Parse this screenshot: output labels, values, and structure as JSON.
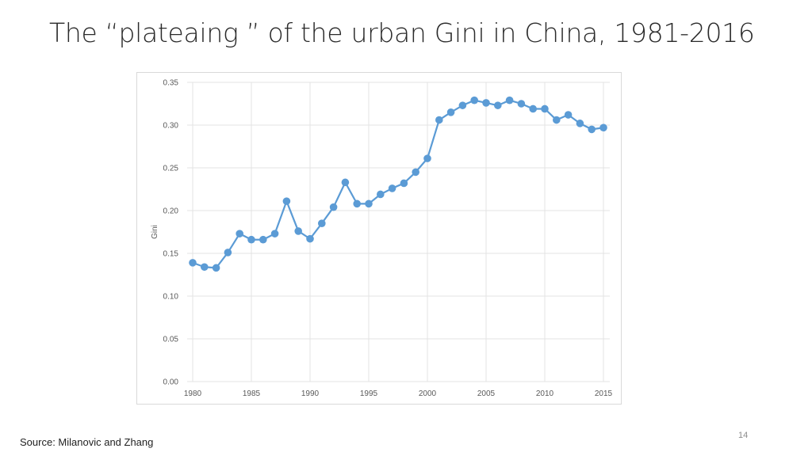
{
  "slide": {
    "title": "The “plateaing ” of the urban Gini in China, 1981-2016",
    "source": "Source: Milanovic and Zhang",
    "page_number": "14"
  },
  "chart_data": {
    "type": "line",
    "title": "",
    "xlabel": "",
    "ylabel": "Gini",
    "xlim": [
      1980,
      2015
    ],
    "ylim": [
      0,
      0.35
    ],
    "xticks": [
      "1980",
      "1985",
      "1990",
      "1995",
      "2000",
      "2005",
      "2010",
      "2015"
    ],
    "yticks": [
      "0.00",
      "0.05",
      "0.10",
      "0.15",
      "0.20",
      "0.25",
      "0.30",
      "0.35"
    ],
    "grid": true,
    "legend": "none",
    "series": [
      {
        "color": "#5b9bd5",
        "x": [
          1980,
          1981,
          1982,
          1983,
          1984,
          1985,
          1986,
          1987,
          1988,
          1989,
          1990,
          1991,
          1992,
          1993,
          1994,
          1995,
          1996,
          1997,
          1998,
          1999,
          2000,
          2001,
          2002,
          2003,
          2004,
          2005,
          2006,
          2007,
          2008,
          2009,
          2010,
          2011,
          2012,
          2013,
          2014,
          2015
        ],
        "y": [
          0.139,
          0.134,
          0.133,
          0.151,
          0.173,
          0.166,
          0.166,
          0.173,
          0.211,
          0.176,
          0.167,
          0.185,
          0.204,
          0.233,
          0.208,
          0.208,
          0.219,
          0.226,
          0.232,
          0.245,
          0.261,
          0.306,
          0.315,
          0.323,
          0.329,
          0.326,
          0.323,
          0.329,
          0.325,
          0.319,
          0.319,
          0.306,
          0.312,
          0.302,
          0.295,
          0.297
        ]
      }
    ]
  }
}
